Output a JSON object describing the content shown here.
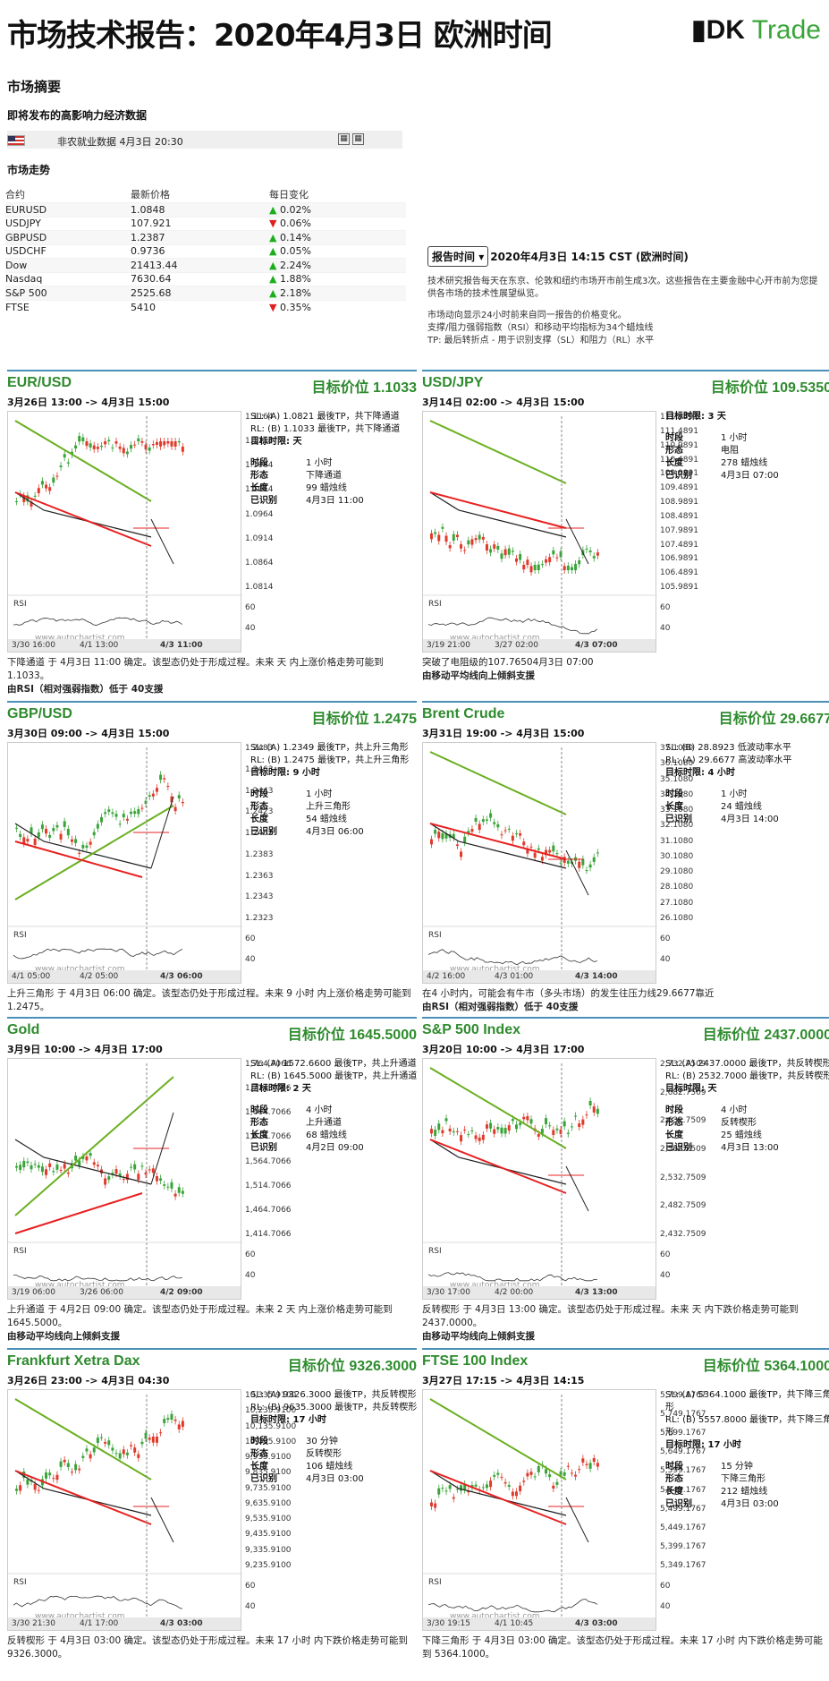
{
  "title": "市场技术报告：2020年4月3日 欧洲时间",
  "logo": {
    "a": "DK",
    "b": "Trade"
  },
  "summary": {
    "heading": "市场摘要",
    "events_heading": "即将发布的高影响力经济数据",
    "event": "非农就业数据 4月3日 20:30",
    "trend_heading": "市场走势"
  },
  "table": {
    "headers": [
      "合约",
      "最新价格",
      "每日变化"
    ],
    "rows": [
      {
        "n": "EURUSD",
        "p": "1.0848",
        "c": "0.02%",
        "d": "up"
      },
      {
        "n": "USDJPY",
        "p": "107.921",
        "c": "0.06%",
        "d": "dn"
      },
      {
        "n": "GBPUSD",
        "p": "1.2387",
        "c": "0.14%",
        "d": "up"
      },
      {
        "n": "USDCHF",
        "p": "0.9736",
        "c": "0.05%",
        "d": "up"
      },
      {
        "n": "Dow",
        "p": "21413.44",
        "c": "2.24%",
        "d": "up"
      },
      {
        "n": "Nasdaq",
        "p": "7630.64",
        "c": "1.88%",
        "d": "up"
      },
      {
        "n": "S&P 500",
        "p": "2525.68",
        "c": "2.18%",
        "d": "up"
      },
      {
        "n": "FTSE",
        "p": "5410",
        "c": "0.35%",
        "d": "dn"
      }
    ]
  },
  "report": {
    "button": "报告时间",
    "time": "2020年4月3日 14:15 CST (欧洲时间)",
    "p1": "技术研究报告每天在东京、伦敦和纽约市场开市前生成3次。这些报告在主要金融中心开市前为您提供各市场的技术性展望纵览。",
    "p2": "市场动向显示24小时前来自同一报告的价格变化。",
    "p3": "支撑/阻力强弱指数（RSI）和移动平均指标为34个蜡烛线",
    "p4": "TP: 最后转折点 - 用于识别支撑（SL）和阻力（RL）水平"
  },
  "panels": [
    {
      "name": "EUR/USD",
      "target": "目标价位 1.1033",
      "range": "3月26日 13:00 -> 4月3日 15:00",
      "sl": "SL: (A) 1.0821 最後TP，共下降通道",
      "rl": "RL: (B) 1.1033 最後TP，共下降通道",
      "tt": "目标时限: 天",
      "period": "1 小时",
      "shape": "下降通道",
      "len": "99 蜡烛线",
      "ident": "4月3日 11:00",
      "ticks": [
        "1.1164",
        "1.1114",
        "1.1064",
        "1.1014",
        "1.0964",
        "1.0914",
        "1.0864",
        "1.0814",
        "60",
        "40"
      ],
      "xl": [
        "3/30 16:00",
        "4/1 13:00",
        "4/3 11:00"
      ],
      "desc": "下降通道 于 4月3日 11:00 确定。该型态仍处于形成过程。未来 天 内上涨价格走势可能到 1.1033。",
      "desc2": "由RSI（相对强弱指数）低于 40支援"
    },
    {
      "name": "USD/JPY",
      "target": "目标价位 109.5350",
      "range": "3月14日 02:00 -> 4月3日 15:00",
      "sl": "",
      "rl": "",
      "tt": "目标时限: 3 天",
      "period": "1 小时",
      "shape": "电阻",
      "len": "278 蜡烛线",
      "ident": "4月3日 07:00",
      "ticks": [
        "111.9891",
        "111.4891",
        "110.9891",
        "110.4891",
        "109.9891",
        "109.4891",
        "108.9891",
        "108.4891",
        "107.9891",
        "107.4891",
        "106.9891",
        "106.4891",
        "105.9891",
        "60",
        "40"
      ],
      "xl": [
        "3/19 21:00",
        "3/27 02:00",
        "4/3 07:00"
      ],
      "desc": "突破了电阻级的107.76504月3日 07:00",
      "desc2": "由移动平均线向上倾斜支援"
    },
    {
      "name": "GBP/USD",
      "target": "目标价位 1.2475",
      "range": "3月30日 09:00 -> 4月3日 15:00",
      "sl": "SL: (A) 1.2349 最後TP，共上升三角形",
      "rl": "RL: (B) 1.2475 最後TP，共上升三角形",
      "tt": "目标时限: 9 小时",
      "period": "1 小时",
      "shape": "上升三角形",
      "len": "54 蜡烛线",
      "ident": "4月3日 06:00",
      "ticks": [
        "1.2483",
        "1.2463",
        "1.2443",
        "1.2423",
        "1.2403",
        "1.2383",
        "1.2363",
        "1.2343",
        "1.2323",
        "60",
        "40"
      ],
      "xl": [
        "4/1 05:00",
        "4/2 05:00",
        "4/3 06:00"
      ],
      "desc": "上升三角形 于 4月3日 06:00 确定。该型态仍处于形成过程。未来 9 小时 内上涨价格走势可能到 1.2475。",
      "desc2": ""
    },
    {
      "name": "Brent Crude",
      "target": "目标价位 29.6677",
      "range": "3月31日 19:00 -> 4月3日 15:00",
      "sl": "SL: (B) 28.8923 低波动率水平",
      "rl": "RL: (A) 29.6677 高波动率水平",
      "tt": "目标时限: 4 小时",
      "period": "1 小时",
      "shape": "",
      "len": "24 蜡烛线",
      "ident": "4月3日 14:00",
      "ticks": [
        "37.1080",
        "36.1080",
        "35.1080",
        "34.1080",
        "33.1080",
        "32.1080",
        "31.1080",
        "30.1080",
        "29.1080",
        "28.1080",
        "27.1080",
        "26.1080",
        "60",
        "40"
      ],
      "xl": [
        "4/2 16:00",
        "4/3 01:00",
        "4/3 14:00"
      ],
      "desc": "在4 小时内，可能会有牛市（多头市场）的发生往压力线29.6677靠近",
      "desc2": "由RSI（相对强弱指数）低于 40支援"
    },
    {
      "name": "Gold",
      "target": "目标价位 1645.5000",
      "range": "3月9日 10:00 -> 4月3日 17:00",
      "sl": "SL: (A) 1572.6600 最後TP，共上升通道",
      "rl": "RL: (B) 1645.5000 最後TP，共上升通道",
      "tt": "目标时限: 2 天",
      "period": "4 小时",
      "shape": "上升通道",
      "len": "68 蜡烛线",
      "ident": "4月2日 09:00",
      "ticks": [
        "1,764.7066",
        "1,714.7066",
        "1,664.7066",
        "1,614.7066",
        "1,564.7066",
        "1,514.7066",
        "1,464.7066",
        "1,414.7066",
        "60",
        "40"
      ],
      "xl": [
        "3/19 06:00",
        "3/26 06:00",
        "4/2 09:00"
      ],
      "desc": "上升通道 于 4月2日 09:00 确定。该型态仍处于形成过程。未来 2 天 内上涨价格走势可能到 1645.5000。",
      "desc2": "由移动平均线向上倾斜支援"
    },
    {
      "name": "S&P 500 Index",
      "target": "目标价位 2437.0000",
      "range": "3月20日 10:00 -> 4月3日 17:00",
      "sl": "SL: (A) 2437.0000 最後TP，共反转楔形",
      "rl": "RL: (B) 2532.7000 最後TP，共反转楔形",
      "tt": "目标时限: 天",
      "period": "4 小时",
      "shape": "反转楔形",
      "len": "25 蜡烛线",
      "ident": "4月3日 13:00",
      "ticks": [
        "2,732.7509",
        "2,682.7509",
        "2,632.7509",
        "2,582.7509",
        "2,532.7509",
        "2,482.7509",
        "2,432.7509",
        "60",
        "40"
      ],
      "xl": [
        "3/30 17:00",
        "4/2 00:00",
        "4/3 13:00"
      ],
      "desc": "反转楔形 于 4月3日 13:00 确定。该型态仍处于形成过程。未来 天 内下跌价格走势可能到 2437.0000。",
      "desc2": "由移动平均线向上倾斜支援"
    },
    {
      "name": "Frankfurt Xetra Dax",
      "target": "目标价位 9326.3000",
      "range": "3月26日 23:00 -> 4月3日 04:30",
      "sl": "SL: (A) 9326.3000 最後TP，共反转楔形",
      "rl": "RL: (B) 9635.3000 最後TP，共反转楔形",
      "tt": "目标时限: 17 小时",
      "period": "30 分钟",
      "shape": "反转楔形",
      "len": "106 蜡烛线",
      "ident": "4月3日 03:00",
      "ticks": [
        "10,335.9100",
        "10,235.9100",
        "10,135.9100",
        "10,035.9100",
        "9,935.9100",
        "9,835.9100",
        "9,735.9100",
        "9,635.9100",
        "9,535.9100",
        "9,435.9100",
        "9,335.9100",
        "9,235.9100",
        "60",
        "40"
      ],
      "xl": [
        "3/30 21:30",
        "4/1 17:00",
        "4/3 03:00"
      ],
      "desc": "反转楔形 于 4月3日 03:00 确定。该型态仍处于形成过程。未来 17 小时 内下跌价格走势可能到 9326.3000。",
      "desc2": ""
    },
    {
      "name": "FTSE 100 Index",
      "target": "目标价位 5364.1000",
      "range": "3月27日 17:15 -> 4月3日 14:15",
      "sl": "SL: (A) 5364.1000 最後TP，共下降三角形",
      "rl": "RL: (B) 5557.8000 最後TP，共下降三角形",
      "tt": "目标时限: 17 小时",
      "period": "15 分钟",
      "shape": "下降三角形",
      "len": "212 蜡烛线",
      "ident": "4月3日 03:00",
      "ticks": [
        "5,799.1767",
        "5,749.1767",
        "5,699.1767",
        "5,649.1767",
        "5,599.1767",
        "5,549.1767",
        "5,499.1767",
        "5,449.1767",
        "5,399.1767",
        "5,349.1767",
        "60",
        "40"
      ],
      "xl": [
        "3/30 19:15",
        "4/1 10:45",
        "4/3 03:00"
      ],
      "desc": "下降三角形 于 4月3日 03:00 确定。该型态仍处于形成过程。未来 17 小时 内下跌价格走势可能到 5364.1000。",
      "desc2": ""
    }
  ],
  "labels": {
    "period": "时段",
    "shape": "形态",
    "len": "长度",
    "ident": "已识别",
    "rsi": "RSI",
    "wm": "www.autochartist.com"
  },
  "colors": {
    "green": "#2e8b2e",
    "accent": "#4a90b8",
    "support": "#e82020",
    "trend": "#6aaf20"
  }
}
